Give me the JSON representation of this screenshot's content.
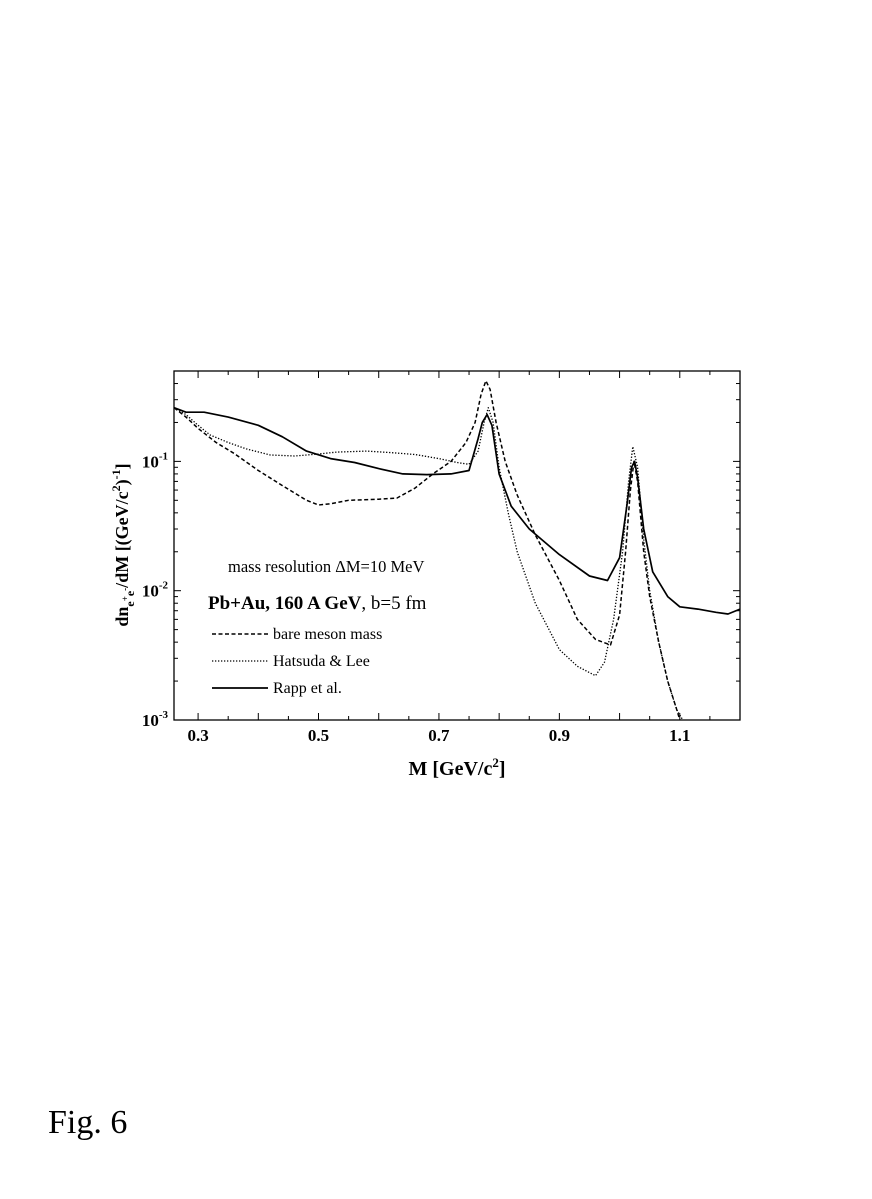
{
  "figure_label": "Fig. 6",
  "chart_data": {
    "type": "line",
    "xlabel": "M [GeV/c²]",
    "ylabel": "dn e+e- /dM [(GeV/c²)⁻¹]",
    "xlim": [
      0.26,
      1.2
    ],
    "ylim": [
      0.001,
      0.5
    ],
    "yscale": "log",
    "x_ticks": [
      "0.3",
      "0.5",
      "0.7",
      "0.9",
      "1.1"
    ],
    "y_ticks": [
      {
        "base": "10",
        "exp": "-3",
        "value": 0.001
      },
      {
        "base": "10",
        "exp": "-2",
        "value": 0.01
      },
      {
        "base": "10",
        "exp": "-1",
        "value": 0.1
      }
    ],
    "annotations": {
      "resolution": "mass resolution  ΔM=10 MeV",
      "system_bold": "Pb+Au, 160 A GeV",
      "system_rest": ", b=5 fm"
    },
    "legend_position": "lower-left",
    "series": [
      {
        "name": "bare meson mass",
        "style": "dashed",
        "points": [
          [
            0.26,
            0.26
          ],
          [
            0.28,
            0.22
          ],
          [
            0.3,
            0.18
          ],
          [
            0.33,
            0.14
          ],
          [
            0.36,
            0.115
          ],
          [
            0.4,
            0.085
          ],
          [
            0.44,
            0.065
          ],
          [
            0.48,
            0.05
          ],
          [
            0.5,
            0.046
          ],
          [
            0.52,
            0.047
          ],
          [
            0.55,
            0.05
          ],
          [
            0.6,
            0.051
          ],
          [
            0.63,
            0.052
          ],
          [
            0.66,
            0.062
          ],
          [
            0.69,
            0.08
          ],
          [
            0.72,
            0.1
          ],
          [
            0.745,
            0.14
          ],
          [
            0.76,
            0.2
          ],
          [
            0.77,
            0.33
          ],
          [
            0.778,
            0.42
          ],
          [
            0.785,
            0.36
          ],
          [
            0.795,
            0.2
          ],
          [
            0.81,
            0.1
          ],
          [
            0.83,
            0.055
          ],
          [
            0.86,
            0.027
          ],
          [
            0.9,
            0.012
          ],
          [
            0.93,
            0.006
          ],
          [
            0.96,
            0.0042
          ],
          [
            0.985,
            0.0038
          ],
          [
            1.0,
            0.0065
          ],
          [
            1.01,
            0.02
          ],
          [
            1.018,
            0.06
          ],
          [
            1.024,
            0.1
          ],
          [
            1.03,
            0.07
          ],
          [
            1.04,
            0.02
          ],
          [
            1.05,
            0.009
          ],
          [
            1.065,
            0.004
          ],
          [
            1.08,
            0.002
          ],
          [
            1.095,
            0.0012
          ],
          [
            1.1,
            0.001
          ]
        ]
      },
      {
        "name": "Hatsuda & Lee",
        "style": "dotted",
        "points": [
          [
            0.26,
            0.26
          ],
          [
            0.28,
            0.23
          ],
          [
            0.3,
            0.19
          ],
          [
            0.32,
            0.16
          ],
          [
            0.35,
            0.14
          ],
          [
            0.38,
            0.125
          ],
          [
            0.42,
            0.112
          ],
          [
            0.46,
            0.11
          ],
          [
            0.5,
            0.114
          ],
          [
            0.53,
            0.118
          ],
          [
            0.58,
            0.12
          ],
          [
            0.62,
            0.117
          ],
          [
            0.66,
            0.113
          ],
          [
            0.7,
            0.105
          ],
          [
            0.73,
            0.098
          ],
          [
            0.75,
            0.095
          ],
          [
            0.765,
            0.12
          ],
          [
            0.775,
            0.2
          ],
          [
            0.782,
            0.26
          ],
          [
            0.79,
            0.2
          ],
          [
            0.8,
            0.09
          ],
          [
            0.815,
            0.04
          ],
          [
            0.83,
            0.02
          ],
          [
            0.86,
            0.008
          ],
          [
            0.9,
            0.0035
          ],
          [
            0.93,
            0.0026
          ],
          [
            0.96,
            0.0022
          ],
          [
            0.975,
            0.0028
          ],
          [
            0.99,
            0.006
          ],
          [
            1.005,
            0.02
          ],
          [
            1.015,
            0.07
          ],
          [
            1.022,
            0.13
          ],
          [
            1.03,
            0.09
          ],
          [
            1.04,
            0.025
          ],
          [
            1.05,
            0.01
          ],
          [
            1.065,
            0.004
          ],
          [
            1.08,
            0.002
          ],
          [
            1.095,
            0.0012
          ],
          [
            1.105,
            0.001
          ]
        ]
      },
      {
        "name": "Rapp et al.",
        "style": "solid",
        "points": [
          [
            0.26,
            0.26
          ],
          [
            0.28,
            0.24
          ],
          [
            0.31,
            0.24
          ],
          [
            0.35,
            0.22
          ],
          [
            0.4,
            0.19
          ],
          [
            0.44,
            0.155
          ],
          [
            0.48,
            0.12
          ],
          [
            0.52,
            0.105
          ],
          [
            0.56,
            0.098
          ],
          [
            0.6,
            0.088
          ],
          [
            0.64,
            0.08
          ],
          [
            0.68,
            0.079
          ],
          [
            0.72,
            0.08
          ],
          [
            0.75,
            0.085
          ],
          [
            0.765,
            0.15
          ],
          [
            0.772,
            0.2
          ],
          [
            0.78,
            0.23
          ],
          [
            0.788,
            0.19
          ],
          [
            0.8,
            0.08
          ],
          [
            0.82,
            0.045
          ],
          [
            0.85,
            0.03
          ],
          [
            0.9,
            0.019
          ],
          [
            0.95,
            0.013
          ],
          [
            0.98,
            0.012
          ],
          [
            1.0,
            0.018
          ],
          [
            1.012,
            0.045
          ],
          [
            1.02,
            0.09
          ],
          [
            1.025,
            0.1
          ],
          [
            1.03,
            0.075
          ],
          [
            1.04,
            0.03
          ],
          [
            1.055,
            0.014
          ],
          [
            1.08,
            0.009
          ],
          [
            1.1,
            0.0075
          ],
          [
            1.13,
            0.0072
          ],
          [
            1.16,
            0.0068
          ],
          [
            1.18,
            0.0066
          ],
          [
            1.2,
            0.0072
          ]
        ]
      }
    ]
  }
}
